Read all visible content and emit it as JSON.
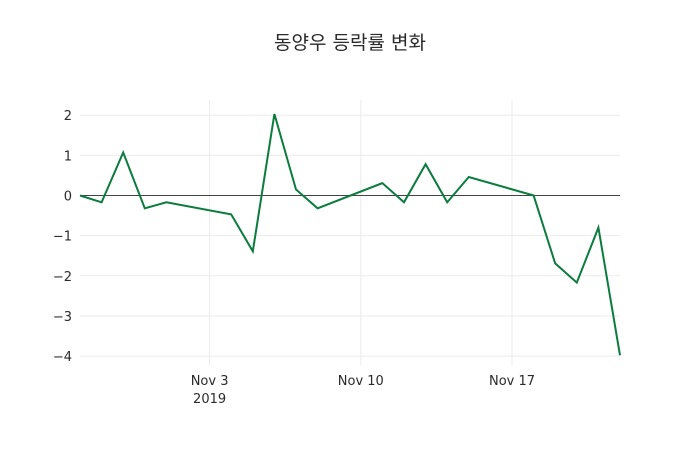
{
  "chart_data": {
    "type": "line",
    "title": "동양우 등락률 변화",
    "xlabel": "",
    "ylabel": "",
    "x": [
      "2019-10-28",
      "2019-10-29",
      "2019-10-30",
      "2019-10-31",
      "2019-11-01",
      "2019-11-04",
      "2019-11-05",
      "2019-11-06",
      "2019-11-07",
      "2019-11-08",
      "2019-11-11",
      "2019-11-12",
      "2019-11-13",
      "2019-11-14",
      "2019-11-15",
      "2019-11-18",
      "2019-11-19",
      "2019-11-20",
      "2019-11-21",
      "2019-11-22"
    ],
    "series": [
      {
        "name": "등락률",
        "color": "#0b7c3e",
        "values": [
          0.0,
          -0.17,
          1.07,
          -0.32,
          -0.17,
          -0.47,
          -1.39,
          2.03,
          0.15,
          -0.32,
          0.31,
          -0.17,
          0.78,
          -0.17,
          0.46,
          0.0,
          -1.69,
          -2.17,
          -0.8,
          -3.98
        ]
      }
    ],
    "x_ticks": [
      {
        "date": "2019-11-03",
        "label": "Nov 3",
        "sublabel": "2019"
      },
      {
        "date": "2019-11-10",
        "label": "Nov 10",
        "sublabel": ""
      },
      {
        "date": "2019-11-17",
        "label": "Nov 17",
        "sublabel": ""
      }
    ],
    "y_ticks": [
      2,
      1,
      0,
      -1,
      -2,
      -3,
      -4
    ],
    "y_tick_labels": [
      "2",
      "1",
      "0",
      "−1",
      "−2",
      "−3",
      "−4"
    ],
    "xlim": [
      "2019-10-28",
      "2019-11-22"
    ],
    "ylim": [
      -4.0,
      2.4
    ],
    "grid": true,
    "zero_line": true,
    "legend": "none"
  }
}
